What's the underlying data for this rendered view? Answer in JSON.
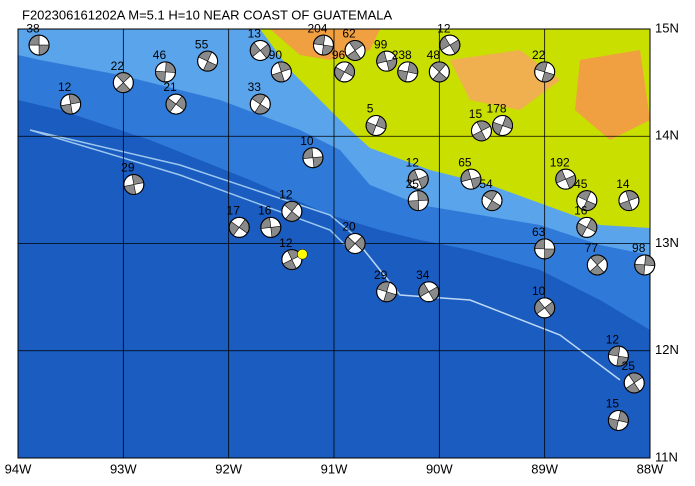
{
  "title": "F202306161202A M=5.1 H=10 NEAR COAST OF GUATEMALA",
  "map": {
    "xlim": [
      -94,
      -88
    ],
    "ylim": [
      11,
      15
    ],
    "xticks": [
      {
        "value": -94,
        "label": "94W"
      },
      {
        "value": -93,
        "label": "93W"
      },
      {
        "value": -92,
        "label": "92W"
      },
      {
        "value": -91,
        "label": "91W"
      },
      {
        "value": -90,
        "label": "90W"
      },
      {
        "value": -89,
        "label": "89W"
      },
      {
        "value": -88,
        "label": "88W"
      }
    ],
    "yticks": [
      {
        "value": 11,
        "label": "11N"
      },
      {
        "value": 12,
        "label": "12N"
      },
      {
        "value": 13,
        "label": "13N"
      },
      {
        "value": 14,
        "label": "14N"
      },
      {
        "value": 15,
        "label": "15N"
      }
    ],
    "grid": true,
    "events": {
      "x": [
        -93.8,
        -93.0,
        -92.6,
        -91.7,
        -91.1,
        -90.8,
        -90.3,
        -89.9,
        -89.0,
        -89.6,
        -89.4,
        -88.8,
        -88.6,
        -88.2,
        -88.6,
        -89.7,
        -89.5,
        -92.9,
        -91.9,
        -91.6,
        -91.4,
        -90.2,
        -90.8,
        -89.0,
        -88.5,
        -88.05,
        -89.0,
        -88.3,
        -88.15,
        -88.3,
        -90.1,
        -90.5,
        -91.4,
        -90.6,
        -90.2,
        -92.2,
        -91.5,
        -90.9,
        -90.5,
        -91.7,
        -93.5,
        -92.5,
        -91.2,
        -90.0
      ],
      "y": [
        14.85,
        14.5,
        14.6,
        14.8,
        14.85,
        14.8,
        14.6,
        14.85,
        14.6,
        14.05,
        14.1,
        13.6,
        13.4,
        13.4,
        13.15,
        13.6,
        13.4,
        13.55,
        13.15,
        13.15,
        13.3,
        13.4,
        13.0,
        12.95,
        12.8,
        12.8,
        12.4,
        11.95,
        11.7,
        11.35,
        12.55,
        12.55,
        12.85,
        14.1,
        13.6,
        14.7,
        14.6,
        14.6,
        14.7,
        14.3,
        14.3,
        14.3,
        13.8,
        14.6
      ],
      "depth": [
        38,
        22,
        46,
        13,
        204,
        62,
        238,
        12,
        22,
        15,
        178,
        192,
        45,
        14,
        16,
        65,
        54,
        29,
        17,
        16,
        12,
        25,
        20,
        63,
        77,
        98,
        10,
        12,
        25,
        15,
        34,
        29,
        12,
        5,
        12,
        55,
        90,
        96,
        99,
        33,
        12,
        21,
        10,
        48
      ]
    },
    "epicenter": {
      "x": -91.3,
      "y": 12.9,
      "color": "#ffff00"
    }
  }
}
